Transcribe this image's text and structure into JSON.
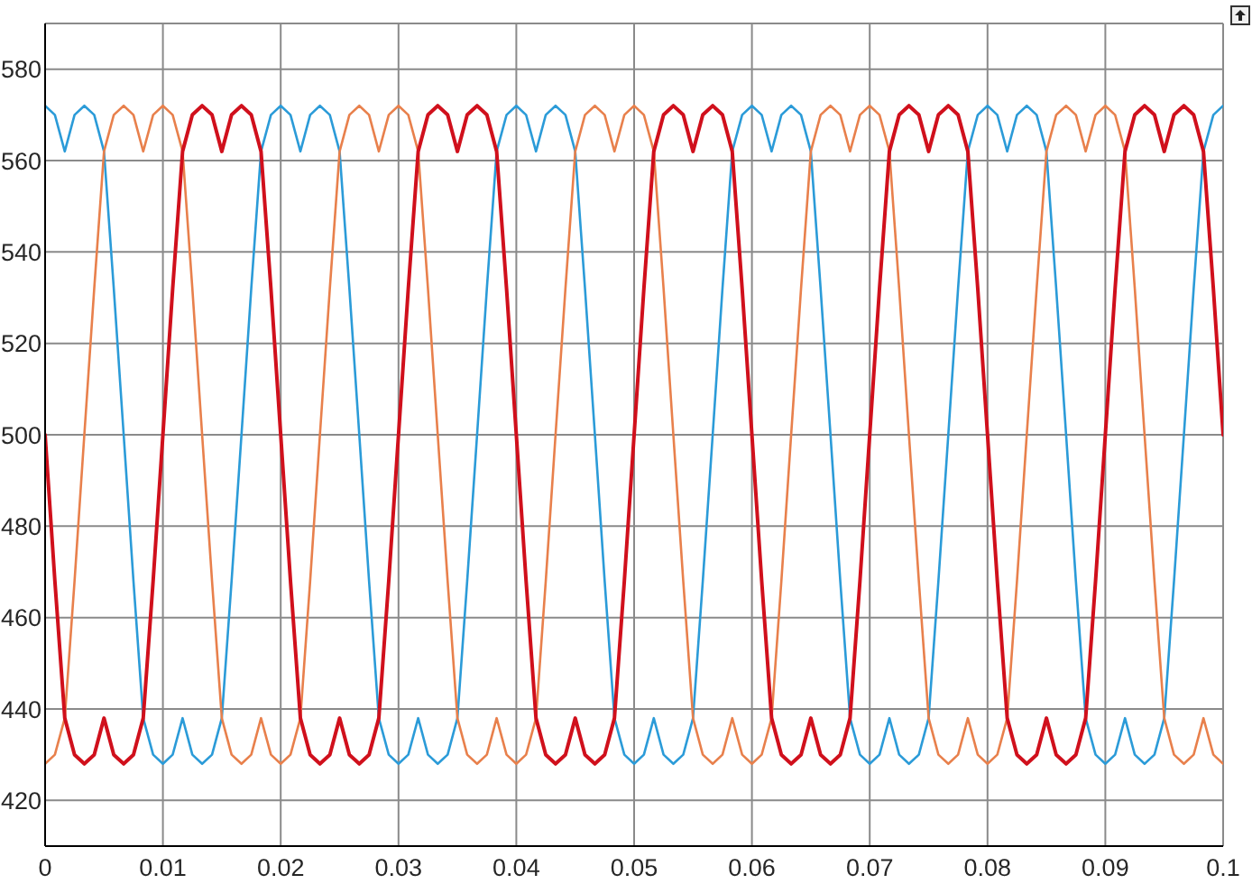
{
  "chart_data": {
    "type": "line",
    "x": [
      0,
      0.00083,
      0.00167,
      0.0025,
      0.00333,
      0.00417,
      0.005,
      0.00583,
      0.00667,
      0.0075,
      0.00833,
      0.00917,
      0.01,
      0.01083,
      0.01167,
      0.0125,
      0.01333,
      0.01417,
      0.015,
      0.01583,
      0.01667,
      0.0175,
      0.01833,
      0.01917,
      0.02,
      0.02083,
      0.02167,
      0.0225,
      0.02333,
      0.02417,
      0.025,
      0.02583,
      0.02667,
      0.0275,
      0.02833,
      0.02917,
      0.03,
      0.03083,
      0.03167,
      0.0325,
      0.03333,
      0.03417,
      0.035,
      0.03583,
      0.03667,
      0.0375,
      0.03833,
      0.03917,
      0.04,
      0.04083,
      0.04167,
      0.0425,
      0.04333,
      0.04417,
      0.045,
      0.04583,
      0.04667,
      0.0475,
      0.04833,
      0.04917,
      0.05,
      0.05083,
      0.05167,
      0.0525,
      0.05333,
      0.05417,
      0.055,
      0.05583,
      0.05667,
      0.0575,
      0.05833,
      0.05917,
      0.06,
      0.06083,
      0.06167,
      0.0625,
      0.06333,
      0.06417,
      0.065,
      0.06583,
      0.06667,
      0.0675,
      0.06833,
      0.06917,
      0.07,
      0.07083,
      0.07167,
      0.0725,
      0.07333,
      0.07417,
      0.075,
      0.07583,
      0.07667,
      0.0775,
      0.07833,
      0.07917,
      0.08,
      0.08083,
      0.08167,
      0.0825,
      0.08333,
      0.08417,
      0.085,
      0.08583,
      0.08667,
      0.0875,
      0.08833,
      0.08917,
      0.09,
      0.09083,
      0.09167,
      0.0925,
      0.09333,
      0.09417,
      0.095,
      0.09583,
      0.09667,
      0.0975,
      0.09833,
      0.09917,
      0.1
    ],
    "xlim": [
      0,
      0.1
    ],
    "xticks": [
      0,
      0.01,
      0.02,
      0.03,
      0.04,
      0.05,
      0.06,
      0.07,
      0.08,
      0.09,
      0.1
    ],
    "ylim": [
      410,
      590
    ],
    "yticks": [
      420,
      440,
      460,
      480,
      500,
      520,
      540,
      560,
      580
    ],
    "grid": true,
    "series": [
      {
        "color": "#2b9bd8",
        "values": [
          572,
          570,
          562,
          570,
          572,
          570,
          562,
          532,
          500,
          468,
          438,
          430,
          428,
          430,
          438,
          430,
          428,
          430,
          438,
          468,
          500,
          532,
          562,
          570,
          572,
          570,
          562,
          570,
          572,
          570,
          562,
          532,
          500,
          468,
          438,
          430,
          428,
          430,
          438,
          430,
          428,
          430,
          438,
          468,
          500,
          532,
          562,
          570,
          572,
          570,
          562,
          570,
          572,
          570,
          562,
          532,
          500,
          468,
          438,
          430,
          428,
          430,
          438,
          430,
          428,
          430,
          438,
          468,
          500,
          532,
          562,
          570,
          572,
          570,
          562,
          570,
          572,
          570,
          562,
          532,
          500,
          468,
          438,
          430,
          428,
          430,
          438,
          430,
          428,
          430,
          438,
          468,
          500,
          532,
          562,
          570,
          572,
          570,
          562,
          570,
          572,
          570,
          562,
          532,
          500,
          468,
          438,
          430,
          428,
          430,
          438,
          430,
          428,
          430,
          438,
          468,
          500,
          532,
          562,
          570,
          572
        ]
      },
      {
        "color": "#e8804c",
        "values": [
          428,
          430,
          438,
          468,
          500,
          532,
          562,
          570,
          572,
          570,
          562,
          570,
          572,
          570,
          562,
          532,
          500,
          468,
          438,
          430,
          428,
          430,
          438,
          430,
          428,
          430,
          438,
          468,
          500,
          532,
          562,
          570,
          572,
          570,
          562,
          570,
          572,
          570,
          562,
          532,
          500,
          468,
          438,
          430,
          428,
          430,
          438,
          430,
          428,
          430,
          438,
          468,
          500,
          532,
          562,
          570,
          572,
          570,
          562,
          570,
          572,
          570,
          562,
          532,
          500,
          468,
          438,
          430,
          428,
          430,
          438,
          430,
          428,
          430,
          438,
          468,
          500,
          532,
          562,
          570,
          572,
          570,
          562,
          570,
          572,
          570,
          562,
          532,
          500,
          468,
          438,
          430,
          428,
          430,
          438,
          430,
          428,
          430,
          438,
          468,
          500,
          532,
          562,
          570,
          572,
          570,
          562,
          570,
          572,
          570,
          562,
          532,
          500,
          468,
          438,
          430,
          428,
          430,
          438,
          430,
          428
        ]
      },
      {
        "color": "#d0101c",
        "values": [
          500,
          468,
          438,
          430,
          428,
          430,
          438,
          430,
          428,
          430,
          438,
          468,
          500,
          532,
          562,
          570,
          572,
          570,
          562,
          570,
          572,
          570,
          562,
          532,
          500,
          468,
          438,
          430,
          428,
          430,
          438,
          430,
          428,
          430,
          438,
          468,
          500,
          532,
          562,
          570,
          572,
          570,
          562,
          570,
          572,
          570,
          562,
          532,
          500,
          468,
          438,
          430,
          428,
          430,
          438,
          430,
          428,
          430,
          438,
          468,
          500,
          532,
          562,
          570,
          572,
          570,
          562,
          570,
          572,
          570,
          562,
          532,
          500,
          468,
          438,
          430,
          428,
          430,
          438,
          430,
          428,
          430,
          438,
          468,
          500,
          532,
          562,
          570,
          572,
          570,
          562,
          570,
          572,
          570,
          562,
          532,
          500,
          468,
          438,
          430,
          428,
          430,
          438,
          430,
          428,
          430,
          438,
          468,
          500,
          532,
          562,
          570,
          572,
          570,
          562,
          570,
          572,
          570,
          562,
          532,
          500
        ]
      }
    ]
  }
}
